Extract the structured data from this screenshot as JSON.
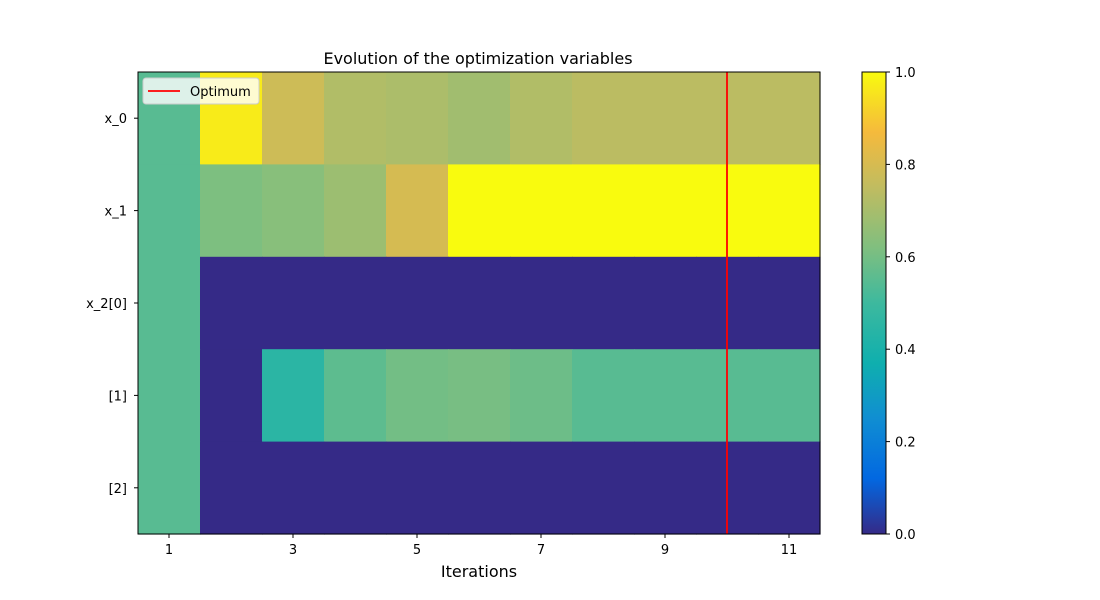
{
  "chart_data": {
    "type": "heatmap",
    "title": "Evolution of the optimization variables",
    "xlabel": "Iterations",
    "ylabel": "",
    "x": [
      1,
      2,
      3,
      4,
      5,
      6,
      7,
      8,
      9,
      10,
      11
    ],
    "x_tick_labels": [
      "1",
      "3",
      "5",
      "7",
      "9",
      "11"
    ],
    "x_tick_values": [
      1,
      3,
      5,
      7,
      9,
      11
    ],
    "rows": [
      "x_0",
      "x_1",
      "x_2[0]",
      "[1]",
      "[2]"
    ],
    "values": [
      [
        0.55,
        0.97,
        0.78,
        0.72,
        0.71,
        0.69,
        0.72,
        0.74,
        0.74,
        0.74,
        0.74
      ],
      [
        0.55,
        0.62,
        0.64,
        0.68,
        0.8,
        1.0,
        1.0,
        1.0,
        1.0,
        1.0,
        1.0
      ],
      [
        0.55,
        0.0,
        0.0,
        0.0,
        0.0,
        0.0,
        0.0,
        0.0,
        0.0,
        0.0,
        0.0
      ],
      [
        0.55,
        0.0,
        0.45,
        0.56,
        0.6,
        0.61,
        0.59,
        0.55,
        0.55,
        0.55,
        0.55
      ],
      [
        0.55,
        0.0,
        0.0,
        0.0,
        0.0,
        0.0,
        0.0,
        0.0,
        0.0,
        0.0,
        0.0
      ]
    ],
    "optimum_iteration": 10,
    "legend": {
      "label": "Optimum",
      "position": "top-left",
      "color": "#ff0000"
    },
    "colorbar": {
      "range": [
        0.0,
        1.0
      ],
      "ticks": [
        "0.0",
        "0.2",
        "0.4",
        "0.6",
        "0.8",
        "1.0"
      ],
      "tick_values": [
        0.0,
        0.2,
        0.4,
        0.6,
        0.8,
        1.0
      ],
      "colormap": "parula"
    }
  }
}
